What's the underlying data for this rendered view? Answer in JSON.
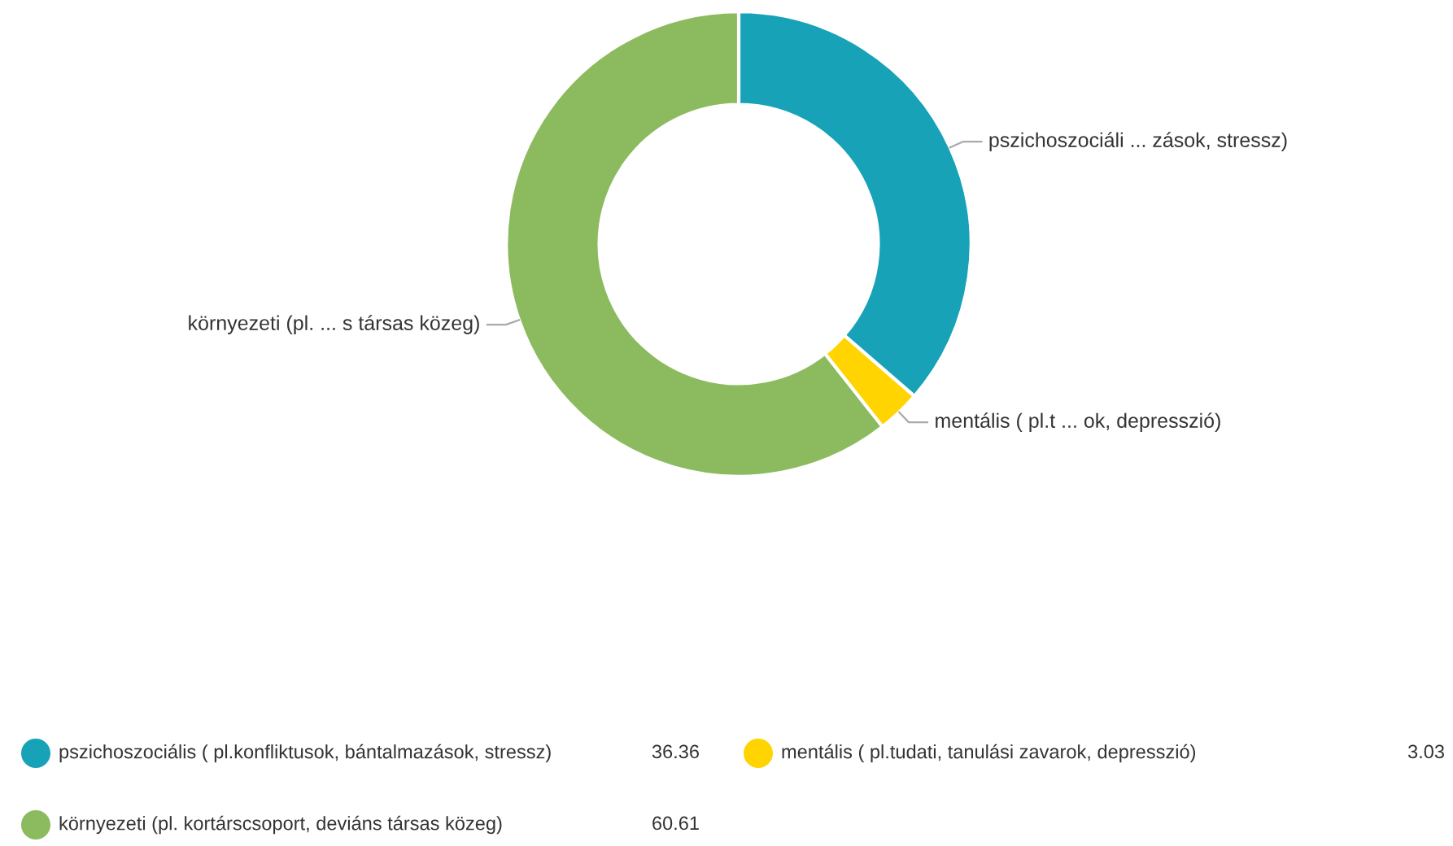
{
  "chart_data": {
    "type": "donut",
    "categories": [
      "pszichoszociális ( pl.konfliktusok, bántalmazások, stressz)",
      "mentális ( pl.tudati, tanulási zavarok, depresszió)",
      "környezeti (pl. kortárscsoport, deviáns társas közeg)"
    ],
    "values": [
      36.36,
      3.03,
      60.61
    ],
    "colors": [
      "#17a2b8",
      "#ffd400",
      "#8cbb5f"
    ],
    "annotations": [
      "pszichoszociáli ... zások, stressz)",
      "mentális ( pl.t ... ok, depresszió)",
      "környezeti (pl. ... s társas közeg)"
    ],
    "data_labels": true,
    "legend": "bottom"
  }
}
